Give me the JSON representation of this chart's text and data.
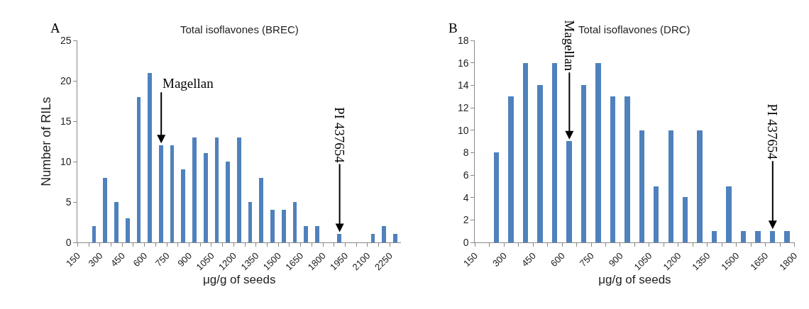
{
  "chart_data": [
    {
      "type": "histogram",
      "title": "Total isoflavones (BREC)",
      "xlabel": "μg/g of seeds",
      "ylabel": "Number of RILs",
      "color": "#4f81bd",
      "bins": [
        225,
        300,
        375,
        450,
        525,
        600,
        675,
        750,
        825,
        900,
        975,
        1050,
        1125,
        1200,
        1275,
        1350,
        1425,
        1500,
        1575,
        1650,
        1725,
        1800,
        1875,
        1950,
        2025,
        2100,
        2175,
        2250,
        2325
      ],
      "values": [
        2,
        8,
        5,
        3,
        18,
        21,
        12,
        12,
        9,
        13,
        11,
        13,
        10,
        13,
        5,
        8,
        4,
        4,
        5,
        2,
        2,
        0,
        1,
        0,
        0,
        1,
        2,
        1
      ],
      "xlim": [
        150,
        2325
      ],
      "xticks": [
        150,
        {
          "value": 225,
          "label": null
        },
        300,
        {
          "value": 375,
          "label": null
        },
        450,
        {
          "value": 525,
          "label": null
        },
        600,
        {
          "value": 675,
          "label": null
        },
        750,
        {
          "value": 825,
          "label": null
        },
        900,
        {
          "value": 975,
          "label": null
        },
        1050,
        {
          "value": 1125,
          "label": null
        },
        1200,
        {
          "value": 1275,
          "label": null
        },
        1350,
        {
          "value": 1425,
          "label": null
        },
        1500,
        {
          "value": 1575,
          "label": null
        },
        1650,
        {
          "value": 1725,
          "label": null
        },
        1800,
        {
          "value": 1875,
          "label": null
        },
        1950,
        {
          "value": 2025,
          "label": null
        },
        2100,
        {
          "value": 2175,
          "label": null
        },
        2250
      ],
      "ylim": [
        0,
        25
      ],
      "yticks": [
        0,
        5,
        10,
        15,
        20,
        25
      ],
      "annotations": [
        "A",
        {
          "text": "Magellan",
          "x": 712.5,
          "y": 12
        },
        {
          "text": "PI 437654",
          "x": 1912.5,
          "y": 1
        }
      ]
    },
    {
      "type": "histogram",
      "title": "Total isoflavones (DRC)",
      "xlabel": "μg/g of seeds",
      "color": "#4f81bd",
      "bins": [
        225,
        300,
        375,
        450,
        525,
        600,
        675,
        750,
        825,
        900,
        975,
        1050,
        1125,
        1200,
        1275,
        1350,
        1425,
        1500,
        1575,
        1650,
        1725,
        1800
      ],
      "values": [
        8,
        13,
        16,
        14,
        16,
        9,
        14,
        16,
        13,
        13,
        10,
        5,
        10,
        4,
        10,
        1,
        5,
        1,
        1,
        1,
        1
      ],
      "xlim": [
        150,
        1800
      ],
      "xticks": [
        150,
        {
          "value": 225,
          "label": null
        },
        300,
        {
          "value": 375,
          "label": null
        },
        450,
        {
          "value": 525,
          "label": null
        },
        600,
        {
          "value": 675,
          "label": null
        },
        750,
        {
          "value": 825,
          "label": null
        },
        900,
        {
          "value": 975,
          "label": null
        },
        1050,
        {
          "value": 1125,
          "label": null
        },
        1200,
        {
          "value": 1275,
          "label": null
        },
        1350,
        {
          "value": 1425,
          "label": null
        },
        1500,
        {
          "value": 1575,
          "label": null
        },
        1650,
        {
          "value": 1725,
          "label": null
        },
        1800
      ],
      "ylim": [
        0,
        18
      ],
      "yticks": [
        0,
        2,
        4,
        6,
        8,
        10,
        12,
        14,
        16,
        18
      ],
      "annotations": [
        "B",
        {
          "text": "Magellan",
          "x": 637.5,
          "y": 9
        },
        {
          "text": "PI 437654",
          "x": 1687.5,
          "y": 1
        }
      ]
    }
  ]
}
